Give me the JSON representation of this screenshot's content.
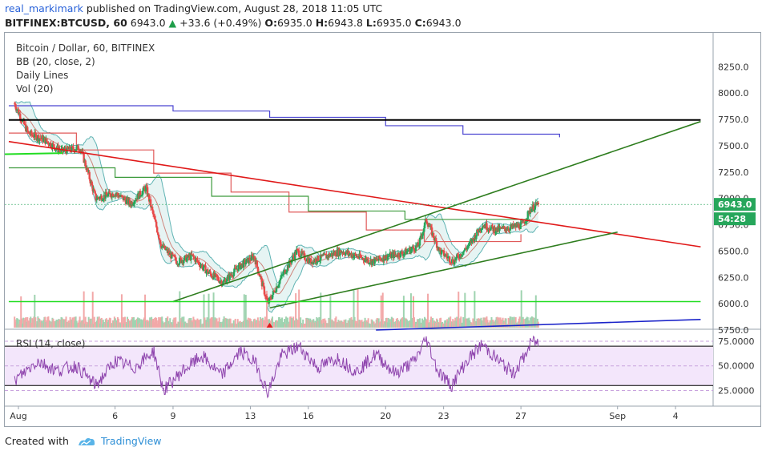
{
  "header": {
    "username": "real_markimark",
    "published_text": "published on TradingView.com, August 28, 2018 11:05 UTC",
    "symbol": "BITFINEX:BTCUSD, 60",
    "last": "6943.0",
    "change": "+33.6 (+0.49%)",
    "open_label": "O:",
    "open": "6935.0",
    "high_label": "H:",
    "high": "6943.8",
    "low_label": "L:",
    "low": "6935.0",
    "close_label": "C:",
    "close": "6943.0"
  },
  "legend": {
    "pair": "Bitcoin / Dollar, 60, BITFINEX",
    "bb": "BB (20, close, 2)",
    "daily": "Daily Lines",
    "vol": "Vol (20)",
    "rsi": "RSI (14, close)"
  },
  "price_badge": "6943.0",
  "time_badge": "54:28",
  "footer": {
    "created": "Created with",
    "brand": "TradingView"
  },
  "colors": {
    "up": "#26a65b",
    "down": "#e84a4a",
    "bb": "#5fb3b3",
    "rsi": "#8e44ad",
    "red_line": "#e01919",
    "green_line": "#2e7d1e",
    "blue_line": "#1a23c9"
  },
  "chart_data": {
    "type": "candlestick",
    "x_tick_labels": [
      "Aug",
      "6",
      "9",
      "13",
      "16",
      "20",
      "23",
      "27",
      "Sep",
      "4"
    ],
    "x_tick_days": [
      1,
      6,
      9,
      13,
      16,
      20,
      23,
      27,
      32,
      35
    ],
    "price_axis": {
      "ylim": [
        5700,
        8500
      ],
      "ticks": [
        "8250.0",
        "8000.0",
        "7750.0",
        "7500.0",
        "7250.0",
        "7000.0",
        "6750.0",
        "6500.0",
        "6250.0",
        "6000.0",
        "5750.0"
      ],
      "tick_values": [
        8250,
        8000,
        7750,
        7500,
        7250,
        7000,
        6750,
        6500,
        6250,
        6000,
        5750
      ]
    },
    "rsi_axis": {
      "ylim": [
        15,
        80
      ],
      "ticks": [
        "75.0000",
        "50.0000",
        "25.0000"
      ],
      "tick_values": [
        75,
        50,
        25
      ],
      "bands": [
        30,
        70
      ]
    },
    "price_path_daily": [
      {
        "day": 0.8,
        "price": 7900
      },
      {
        "day": 1.5,
        "price": 7620
      },
      {
        "day": 2.3,
        "price": 7560
      },
      {
        "day": 3.2,
        "price": 7450
      },
      {
        "day": 4.2,
        "price": 7480
      },
      {
        "day": 5.0,
        "price": 7000
      },
      {
        "day": 6.0,
        "price": 7050
      },
      {
        "day": 6.8,
        "price": 6950
      },
      {
        "day": 7.6,
        "price": 7100
      },
      {
        "day": 8.4,
        "price": 6550
      },
      {
        "day": 9.2,
        "price": 6400
      },
      {
        "day": 10.0,
        "price": 6450
      },
      {
        "day": 10.8,
        "price": 6300
      },
      {
        "day": 11.6,
        "price": 6200
      },
      {
        "day": 12.4,
        "price": 6350
      },
      {
        "day": 13.2,
        "price": 6450
      },
      {
        "day": 13.9,
        "price": 6000
      },
      {
        "day": 14.6,
        "price": 6250
      },
      {
        "day": 15.4,
        "price": 6500
      },
      {
        "day": 16.1,
        "price": 6400
      },
      {
        "day": 16.9,
        "price": 6450
      },
      {
        "day": 17.7,
        "price": 6500
      },
      {
        "day": 18.5,
        "price": 6450
      },
      {
        "day": 19.3,
        "price": 6400
      },
      {
        "day": 20.1,
        "price": 6450
      },
      {
        "day": 20.9,
        "price": 6480
      },
      {
        "day": 21.7,
        "price": 6550
      },
      {
        "day": 22.1,
        "price": 6800
      },
      {
        "day": 22.8,
        "price": 6500
      },
      {
        "day": 23.5,
        "price": 6400
      },
      {
        "day": 24.3,
        "price": 6550
      },
      {
        "day": 25.0,
        "price": 6750
      },
      {
        "day": 25.7,
        "price": 6700
      },
      {
        "day": 26.4,
        "price": 6720
      },
      {
        "day": 27.1,
        "price": 6750
      },
      {
        "day": 27.5,
        "price": 6900
      },
      {
        "day": 27.9,
        "price": 6943
      }
    ],
    "trend_lines": [
      {
        "name": "red descending",
        "color": "red",
        "from": {
          "day": 0.5,
          "price": 7540
        },
        "to": {
          "day": 36.3,
          "price": 6540
        }
      },
      {
        "name": "green ascending upper",
        "color": "green",
        "from": {
          "day": 9.0,
          "price": 6020
        },
        "to": {
          "day": 36.3,
          "price": 7730
        }
      },
      {
        "name": "green ascending lower",
        "color": "green",
        "from": {
          "day": 14.0,
          "price": 5960
        },
        "to": {
          "day": 32.0,
          "price": 6680
        }
      },
      {
        "name": "black horizontal",
        "color": "black",
        "from": {
          "day": 0.5,
          "price": 7745
        },
        "to": {
          "day": 36.3,
          "price": 7745
        }
      },
      {
        "name": "bright green horizontal",
        "color": "lime",
        "from": {
          "day": 0.5,
          "price": 6020
        },
        "to": {
          "day": 36.3,
          "price": 6020
        }
      },
      {
        "name": "blue ascending",
        "color": "blue",
        "from": {
          "day": 19.5,
          "price": 5750
        },
        "to": {
          "day": 36.3,
          "price": 5850
        }
      }
    ],
    "daily_lines": {
      "purple": [
        {
          "day": 0.5,
          "price": 7880
        },
        {
          "day": 9,
          "price": 7830
        },
        {
          "day": 14,
          "price": 7770
        },
        {
          "day": 20,
          "price": 7690
        },
        {
          "day": 24,
          "price": 7610
        },
        {
          "day": 29,
          "price": 7580
        }
      ],
      "red": [
        {
          "day": 0.5,
          "price": 7620
        },
        {
          "day": 4,
          "price": 7460
        },
        {
          "day": 8,
          "price": 7240
        },
        {
          "day": 12,
          "price": 7060
        },
        {
          "day": 15,
          "price": 6870
        },
        {
          "day": 19,
          "price": 6700
        },
        {
          "day": 22,
          "price": 6590
        },
        {
          "day": 27,
          "price": 6660
        }
      ],
      "green": [
        {
          "day": 0.5,
          "price": 7290
        },
        {
          "day": 6,
          "price": 7200
        },
        {
          "day": 11,
          "price": 7020
        },
        {
          "day": 16,
          "price": 6880
        },
        {
          "day": 21,
          "price": 6800
        },
        {
          "day": 27.5,
          "price": 6800
        }
      ]
    },
    "rsi_path": [
      {
        "day": 0.8,
        "rsi": 35
      },
      {
        "day": 2,
        "rsi": 55
      },
      {
        "day": 3,
        "rsi": 45
      },
      {
        "day": 4,
        "rsi": 50
      },
      {
        "day": 5,
        "rsi": 30
      },
      {
        "day": 6,
        "rsi": 55
      },
      {
        "day": 7,
        "rsi": 48
      },
      {
        "day": 8,
        "rsi": 65
      },
      {
        "day": 8.5,
        "rsi": 25
      },
      {
        "day": 9.5,
        "rsi": 45
      },
      {
        "day": 10.5,
        "rsi": 60
      },
      {
        "day": 11.5,
        "rsi": 40
      },
      {
        "day": 12.5,
        "rsi": 65
      },
      {
        "day": 13.3,
        "rsi": 52
      },
      {
        "day": 13.9,
        "rsi": 22
      },
      {
        "day": 14.6,
        "rsi": 60
      },
      {
        "day": 15.5,
        "rsi": 70
      },
      {
        "day": 16.5,
        "rsi": 48
      },
      {
        "day": 17.5,
        "rsi": 58
      },
      {
        "day": 18.5,
        "rsi": 44
      },
      {
        "day": 19.5,
        "rsi": 62
      },
      {
        "day": 20.5,
        "rsi": 42
      },
      {
        "day": 21.5,
        "rsi": 55
      },
      {
        "day": 22.1,
        "rsi": 78
      },
      {
        "day": 22.7,
        "rsi": 45
      },
      {
        "day": 23.4,
        "rsi": 30
      },
      {
        "day": 24.2,
        "rsi": 55
      },
      {
        "day": 25.0,
        "rsi": 72
      },
      {
        "day": 25.8,
        "rsi": 56
      },
      {
        "day": 26.6,
        "rsi": 42
      },
      {
        "day": 27.2,
        "rsi": 60
      },
      {
        "day": 27.6,
        "rsi": 76
      },
      {
        "day": 27.9,
        "rsi": 73
      }
    ]
  }
}
